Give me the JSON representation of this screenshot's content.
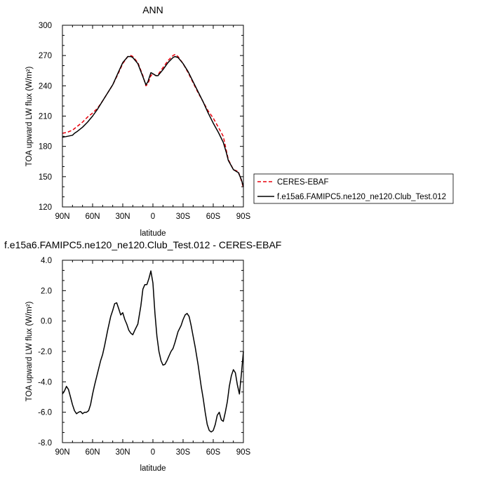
{
  "chart_data": [
    {
      "type": "line",
      "title": "ANN",
      "xlabel": "latitude",
      "ylabel": "TOA upward LW flux (W/m²)",
      "xlim": [
        90,
        -90
      ],
      "ylim": [
        120,
        300
      ],
      "x_ticks": [
        90,
        60,
        30,
        0,
        -30,
        -60,
        -90
      ],
      "x_tick_labels": [
        "90N",
        "60N",
        "30N",
        "0",
        "30S",
        "60S",
        "90S"
      ],
      "y_ticks": [
        120,
        150,
        180,
        210,
        240,
        270,
        300
      ],
      "y_tick_labels": [
        "120",
        "150",
        "180",
        "210",
        "240",
        "270",
        "300"
      ],
      "legend_position": "outside-right",
      "series": [
        {
          "name": "CERES-EBAF",
          "color": "#e8000b",
          "dashed": true,
          "x": [
            90,
            85,
            80,
            75,
            70,
            65,
            60,
            55,
            50,
            45,
            40,
            35,
            30,
            25,
            22,
            20,
            15,
            10,
            7,
            5,
            2,
            0,
            -3,
            -5,
            -10,
            -15,
            -20,
            -22,
            -25,
            -30,
            -35,
            -40,
            -45,
            -50,
            -55,
            -60,
            -65,
            -70,
            -73,
            -75,
            -80,
            -85,
            -88,
            -90
          ],
          "y": [
            193,
            194,
            196,
            200,
            204,
            209,
            213,
            218,
            225,
            233,
            241,
            251,
            262,
            269,
            270,
            269,
            263,
            250,
            240,
            242,
            250,
            252,
            250,
            251,
            258,
            265,
            270,
            271,
            269,
            262,
            253,
            243,
            233,
            224,
            215,
            208,
            199,
            190,
            176,
            167,
            157,
            155,
            146,
            139
          ]
        },
        {
          "name": "f.e15a6.FAMIPC5.ne120_ne120.Club_Test.012",
          "color": "#000000",
          "dashed": false,
          "x": [
            90,
            85,
            80,
            78,
            75,
            70,
            65,
            60,
            55,
            50,
            45,
            40,
            35,
            30,
            25,
            22,
            20,
            15,
            10,
            7,
            5,
            2,
            0,
            -3,
            -5,
            -10,
            -15,
            -20,
            -22,
            -25,
            -30,
            -35,
            -40,
            -45,
            -50,
            -55,
            -60,
            -65,
            -70,
            -73,
            -75,
            -80,
            -85,
            -88,
            -90
          ],
          "y": [
            189,
            190,
            191,
            193,
            195,
            199,
            204,
            210,
            217,
            225,
            233,
            241,
            252,
            263,
            269,
            269,
            268,
            262,
            249,
            241,
            244,
            253,
            252,
            250,
            250,
            256,
            263,
            268,
            269,
            268,
            262,
            254,
            244,
            234,
            224,
            213,
            203,
            194,
            184,
            174,
            166,
            157,
            154,
            147,
            140
          ]
        }
      ]
    },
    {
      "type": "line",
      "title": "f.e15a6.FAMIPC5.ne120_ne120.Club_Test.012 - CERES-EBAF",
      "xlabel": "latitude",
      "ylabel": "TOA upward LW flux (W/m²)",
      "xlim": [
        90,
        -90
      ],
      "ylim": [
        -8,
        4
      ],
      "x_ticks": [
        90,
        60,
        30,
        0,
        -30,
        -60,
        -90
      ],
      "x_tick_labels": [
        "90N",
        "60N",
        "30N",
        "0",
        "30S",
        "60S",
        "90S"
      ],
      "y_ticks": [
        -8,
        -6,
        -4,
        -2,
        0,
        2,
        4
      ],
      "y_tick_labels": [
        "-8.0",
        "-6.0",
        "-4.0",
        "-2.0",
        "0.0",
        "2.0",
        "4.0"
      ],
      "series": [
        {
          "color": "#000000",
          "dashed": false,
          "x": [
            90,
            88,
            86,
            84,
            82,
            80,
            78,
            76,
            74,
            72,
            70,
            68,
            66,
            64,
            62,
            60,
            58,
            55,
            52,
            50,
            48,
            45,
            42,
            40,
            38,
            36,
            34,
            32,
            30,
            28,
            26,
            24,
            22,
            20,
            18,
            15,
            12,
            10,
            8,
            6,
            4,
            2,
            0,
            -2,
            -4,
            -6,
            -8,
            -10,
            -12,
            -14,
            -16,
            -18,
            -20,
            -22,
            -25,
            -28,
            -30,
            -32,
            -34,
            -36,
            -38,
            -40,
            -42,
            -45,
            -48,
            -50,
            -52,
            -54,
            -56,
            -58,
            -60,
            -62,
            -64,
            -66,
            -68,
            -70,
            -72,
            -74,
            -76,
            -78,
            -80,
            -82,
            -84,
            -86,
            -88,
            -90
          ],
          "y": [
            -4.8,
            -4.6,
            -4.3,
            -4.5,
            -5.0,
            -5.5,
            -5.9,
            -6.1,
            -6.0,
            -5.95,
            -6.1,
            -6.0,
            -6.0,
            -5.9,
            -5.5,
            -4.8,
            -4.2,
            -3.4,
            -2.6,
            -2.2,
            -1.6,
            -0.6,
            0.3,
            0.7,
            1.15,
            1.2,
            0.8,
            0.4,
            0.55,
            0.1,
            -0.2,
            -0.6,
            -0.8,
            -0.9,
            -0.6,
            -0.2,
            1.0,
            2.1,
            2.4,
            2.4,
            2.8,
            3.3,
            2.5,
            0.5,
            -1.0,
            -2.0,
            -2.6,
            -2.9,
            -2.85,
            -2.6,
            -2.3,
            -2.0,
            -1.8,
            -1.4,
            -0.7,
            -0.3,
            0.1,
            0.4,
            0.5,
            0.3,
            -0.3,
            -1.0,
            -1.7,
            -2.9,
            -4.3,
            -5.1,
            -6.0,
            -6.8,
            -7.2,
            -7.3,
            -7.2,
            -6.8,
            -6.2,
            -6.0,
            -6.5,
            -6.6,
            -6.0,
            -5.3,
            -4.3,
            -3.6,
            -3.2,
            -3.4,
            -4.2,
            -4.8,
            -3.5,
            -2.0
          ]
        }
      ]
    }
  ]
}
